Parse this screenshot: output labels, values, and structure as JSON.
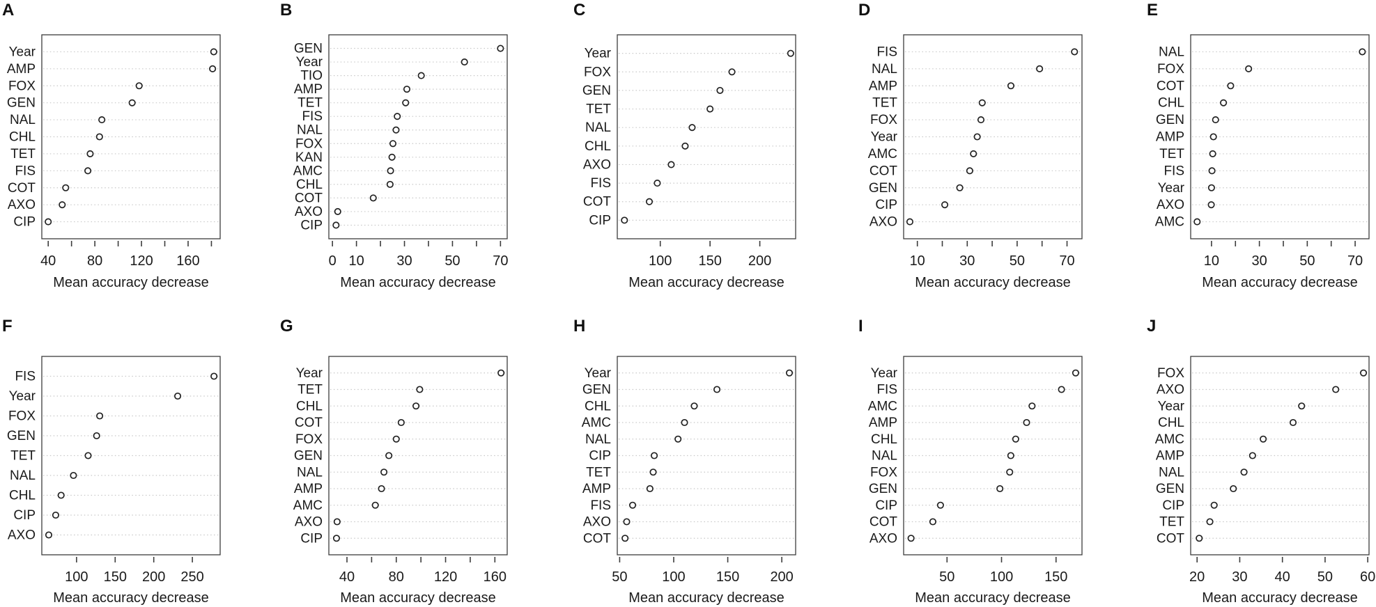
{
  "style": {
    "dot_stroke": "#222222",
    "dot_fill": "#ffffff",
    "grid_color": "#c8c8c8",
    "box_color": "#3c3c3c",
    "text_color": "#1a1a1a"
  },
  "chart_data": [
    {
      "panel": "A",
      "type": "scatter",
      "xlabel": "Mean accuracy decrease",
      "categories": [
        "Year",
        "AMP",
        "FOX",
        "GEN",
        "NAL",
        "CHL",
        "TET",
        "FIS",
        "COT",
        "AXO",
        "CIP"
      ],
      "values": [
        182,
        181,
        118,
        112,
        86,
        84,
        76,
        74,
        55,
        52,
        40
      ],
      "xlim": [
        34.5,
        187.5
      ],
      "ticks": [
        40,
        60,
        80,
        100,
        120,
        140,
        160,
        180
      ],
      "tick_labels": [
        40,
        80,
        120,
        160
      ],
      "grid": "dotted-horizontal",
      "legend": "none"
    },
    {
      "panel": "B",
      "type": "scatter",
      "xlabel": "Mean accuracy decrease",
      "categories": [
        "GEN",
        "Year",
        "TIO",
        "AMP",
        "TET",
        "FIS",
        "NAL",
        "FOX",
        "KAN",
        "AMC",
        "CHL",
        "COT",
        "AXO",
        "CIP"
      ],
      "values": [
        70,
        55,
        37,
        31,
        30.5,
        27,
        26.5,
        25.2,
        24.8,
        24.2,
        24.0,
        17,
        2.2,
        1.5
      ],
      "xlim": [
        -1.5,
        72.8
      ],
      "ticks": [
        0,
        10,
        20,
        30,
        40,
        50,
        60,
        70
      ],
      "tick_labels": [
        0,
        10,
        30,
        50,
        70
      ],
      "grid": "dotted-horizontal",
      "legend": "none"
    },
    {
      "panel": "C",
      "type": "scatter",
      "xlabel": "Mean accuracy decrease",
      "categories": [
        "Year",
        "FOX",
        "GEN",
        "TET",
        "NAL",
        "CHL",
        "AXO",
        "FIS",
        "COT",
        "CIP"
      ],
      "values": [
        231,
        172,
        160,
        150,
        132,
        125,
        111,
        97,
        89,
        64
      ],
      "xlim": [
        56.8,
        236
      ],
      "ticks": [
        100,
        150,
        200
      ],
      "tick_labels": [
        100,
        150,
        200
      ],
      "grid": "dotted-horizontal",
      "legend": "none"
    },
    {
      "panel": "D",
      "type": "scatter",
      "xlabel": "Mean accuracy decrease",
      "categories": [
        "FIS",
        "NAL",
        "AMP",
        "TET",
        "FOX",
        "Year",
        "AMC",
        "COT",
        "GEN",
        "CIP",
        "AXO"
      ],
      "values": [
        73,
        59,
        47.5,
        36,
        35.5,
        34,
        32.5,
        31,
        27,
        21,
        7
      ],
      "xlim": [
        4.5,
        76
      ],
      "ticks": [
        10,
        20,
        30,
        40,
        50,
        60,
        70
      ],
      "tick_labels": [
        10,
        30,
        50,
        70
      ],
      "grid": "dotted-horizontal",
      "legend": "none"
    },
    {
      "panel": "E",
      "type": "scatter",
      "xlabel": "Mean accuracy decrease",
      "categories": [
        "NAL",
        "FOX",
        "COT",
        "CHL",
        "GEN",
        "AMP",
        "TET",
        "FIS",
        "Year",
        "AXO",
        "AMC"
      ],
      "values": [
        73,
        25.5,
        18,
        15,
        11.7,
        10.8,
        10.5,
        10.2,
        10.0,
        9.9,
        4
      ],
      "xlim": [
        1.3,
        75.8
      ],
      "ticks": [
        10,
        20,
        30,
        40,
        50,
        60,
        70
      ],
      "tick_labels": [
        10,
        30,
        50,
        70
      ],
      "grid": "dotted-horizontal",
      "legend": "none"
    },
    {
      "panel": "F",
      "type": "scatter",
      "xlabel": "Mean accuracy decrease",
      "categories": [
        "FIS",
        "Year",
        "FOX",
        "GEN",
        "TET",
        "NAL",
        "CHL",
        "CIP",
        "AXO"
      ],
      "values": [
        278,
        231,
        130,
        126,
        115,
        96,
        80,
        73,
        64
      ],
      "xlim": [
        55,
        286
      ],
      "ticks": [
        100,
        150,
        200,
        250
      ],
      "tick_labels": [
        100,
        150,
        200,
        250
      ],
      "grid": "dotted-horizontal",
      "legend": "none"
    },
    {
      "panel": "G",
      "type": "scatter",
      "xlabel": "Mean accuracy decrease",
      "categories": [
        "Year",
        "TET",
        "CHL",
        "COT",
        "FOX",
        "GEN",
        "NAL",
        "AMP",
        "AMC",
        "AXO",
        "CIP"
      ],
      "values": [
        165,
        99,
        96,
        84,
        80,
        74,
        70,
        68,
        63,
        32,
        31.5
      ],
      "xlim": [
        25.3,
        170
      ],
      "ticks": [
        40,
        60,
        80,
        100,
        120,
        140,
        160
      ],
      "tick_labels": [
        40,
        80,
        120,
        160
      ],
      "grid": "dotted-horizontal",
      "legend": "none"
    },
    {
      "panel": "H",
      "type": "scatter",
      "xlabel": "Mean accuracy decrease",
      "categories": [
        "Year",
        "GEN",
        "CHL",
        "AMC",
        "NAL",
        "CIP",
        "TET",
        "AMP",
        "FIS",
        "AXO",
        "COT"
      ],
      "values": [
        207,
        140,
        119,
        110,
        104,
        82,
        81,
        78,
        62,
        56.5,
        55
      ],
      "xlim": [
        47.8,
        212.8
      ],
      "ticks": [
        50,
        100,
        150,
        200
      ],
      "tick_labels": [
        50,
        100,
        150,
        200
      ],
      "grid": "dotted-horizontal",
      "legend": "none"
    },
    {
      "panel": "I",
      "type": "scatter",
      "xlabel": "Mean accuracy decrease",
      "categories": [
        "Year",
        "FIS",
        "AMC",
        "AMP",
        "CHL",
        "NAL",
        "FOX",
        "GEN",
        "CIP",
        "COT",
        "AXO"
      ],
      "values": [
        168,
        155,
        128,
        123,
        113,
        108.5,
        107.5,
        98.5,
        44,
        37,
        17
      ],
      "xlim": [
        10.2,
        173.8
      ],
      "ticks": [
        50,
        100,
        150
      ],
      "tick_labels": [
        50,
        100,
        150
      ],
      "grid": "dotted-horizontal",
      "legend": "none"
    },
    {
      "panel": "J",
      "type": "scatter",
      "xlabel": "Mean accuracy decrease",
      "categories": [
        "FOX",
        "AXO",
        "Year",
        "CHL",
        "AMC",
        "AMP",
        "NAL",
        "GEN",
        "CIP",
        "TET",
        "COT"
      ],
      "values": [
        59,
        52.5,
        44.5,
        42.5,
        35.5,
        33,
        31,
        28.5,
        24,
        23,
        20.5
      ],
      "xlim": [
        18.5,
        60.3
      ],
      "ticks": [
        20,
        30,
        40,
        50,
        60
      ],
      "tick_labels": [
        20,
        30,
        40,
        50,
        60
      ],
      "grid": "dotted-horizontal",
      "legend": "none"
    }
  ]
}
